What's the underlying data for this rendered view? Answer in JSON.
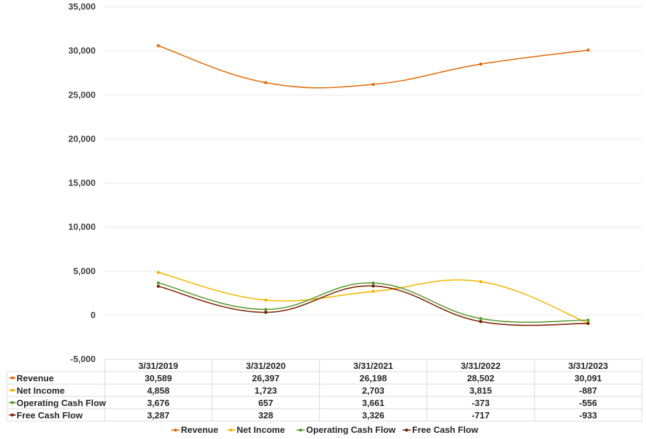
{
  "chart_data": {
    "type": "line",
    "title": "",
    "xlabel": "",
    "ylabel": "",
    "ylim": [
      -5000,
      35000
    ],
    "yticks": [
      -5000,
      0,
      5000,
      10000,
      15000,
      20000,
      25000,
      30000,
      35000
    ],
    "ytick_labels": [
      "-5,000",
      "0",
      "5,000",
      "10,000",
      "15,000",
      "20,000",
      "25,000",
      "30,000",
      "35,000"
    ],
    "categories": [
      "3/31/2019",
      "3/31/2020",
      "3/31/2021",
      "3/31/2022",
      "3/31/2023"
    ],
    "grid": true,
    "legend": "bottom",
    "series": [
      {
        "name": "Revenue",
        "color": "#E36C0A",
        "values": [
          30589,
          26397,
          26198,
          28502,
          30091
        ],
        "labels": [
          "30,589",
          "26,397",
          "26,198",
          "28,502",
          "30,091"
        ]
      },
      {
        "name": "Net Income",
        "color": "#F2B600",
        "values": [
          4858,
          1723,
          2703,
          3815,
          -887
        ],
        "labels": [
          "4,858",
          "1,723",
          "2,703",
          "3,815",
          "-887"
        ]
      },
      {
        "name": "Operating Cash Flow",
        "color": "#5A9A2F",
        "values": [
          3676,
          657,
          3661,
          -373,
          -556
        ],
        "labels": [
          "3,676",
          "657",
          "3,661",
          "-373",
          "-556"
        ]
      },
      {
        "name": "Free Cash Flow",
        "color": "#7B2100",
        "values": [
          3287,
          328,
          3326,
          -717,
          -933
        ],
        "labels": [
          "3,287",
          "328",
          "3,326",
          "-717",
          "-933"
        ]
      }
    ]
  }
}
